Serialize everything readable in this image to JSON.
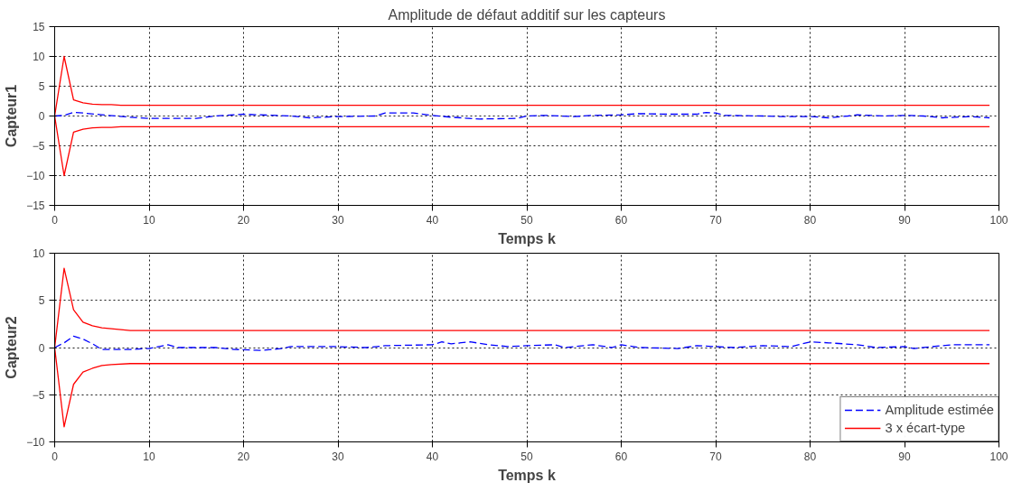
{
  "chart_data": [
    {
      "type": "line",
      "title": "Amplitude de défaut additif sur les capteurs",
      "xlabel": "Temps k",
      "ylabel": "Capteur1",
      "xlim": [
        0,
        100
      ],
      "xticks": [
        0,
        10,
        20,
        30,
        40,
        50,
        60,
        70,
        80,
        90,
        100
      ],
      "ylim": [
        -15,
        15
      ],
      "yticks": [
        -15,
        -10,
        -5,
        0,
        5,
        10,
        15
      ],
      "grid": true,
      "legend": false,
      "series": [
        {
          "color": "#0000ff",
          "line_style": "dashed",
          "x": [
            0,
            1,
            2,
            3,
            5,
            8,
            10,
            15,
            17,
            20,
            25,
            27,
            30,
            34,
            35,
            38,
            40,
            42,
            45,
            49,
            50,
            52,
            55,
            57,
            60,
            62,
            65,
            68,
            69,
            70,
            71,
            75,
            77,
            80,
            82,
            84,
            85,
            88,
            90,
            92,
            94,
            97,
            99
          ],
          "values": [
            0,
            0.1,
            0.6,
            0.5,
            0.2,
            -0.2,
            -0.4,
            -0.4,
            0,
            0.3,
            0,
            -0.3,
            -0.1,
            0,
            0.5,
            0.5,
            0.1,
            -0.2,
            -0.5,
            -0.4,
            0,
            0.1,
            -0.1,
            0.1,
            0.2,
            0.4,
            0.3,
            0.3,
            0.6,
            0.5,
            0.1,
            0,
            -0.1,
            -0.1,
            -0.3,
            0,
            0.2,
            0,
            0.1,
            0,
            -0.3,
            -0.1,
            -0.3
          ]
        },
        {
          "color": "#ff0000",
          "line_style": "solid",
          "x": [
            99,
            7,
            6,
            5,
            4,
            3,
            2,
            1,
            0,
            1,
            2,
            3,
            4,
            5,
            6,
            7,
            99
          ],
          "values": [
            1.8,
            1.8,
            1.9,
            1.9,
            2.0,
            2.2,
            2.7,
            10,
            0,
            -10,
            -2.7,
            -2.2,
            -2.0,
            -1.9,
            -1.9,
            -1.8,
            -1.8
          ]
        }
      ]
    },
    {
      "type": "line",
      "xlabel": "Temps k",
      "ylabel": "Capteur2",
      "xlim": [
        0,
        100
      ],
      "xticks": [
        0,
        10,
        20,
        30,
        40,
        50,
        60,
        70,
        80,
        90,
        100
      ],
      "ylim": [
        -10,
        10
      ],
      "yticks": [
        -10,
        -5,
        0,
        5,
        10
      ],
      "grid": true,
      "legend": "bottom right",
      "series": [
        {
          "name": "Amplitude estimée",
          "color": "#0000ff",
          "line_style": "dashed",
          "x": [
            0,
            1,
            2,
            3,
            4,
            5,
            8,
            10,
            12,
            13,
            17,
            19,
            22,
            24,
            25,
            30,
            33,
            35,
            40,
            41,
            42,
            44,
            46,
            48,
            50,
            53,
            54,
            57,
            59,
            60,
            62,
            66,
            68,
            72,
            75,
            78,
            80,
            82,
            85,
            87,
            90,
            91,
            95,
            97,
            99
          ],
          "values": [
            0,
            0.5,
            1.2,
            0.9,
            0.4,
            -0.2,
            -0.2,
            -0.1,
            0.3,
            0,
            0,
            -0.2,
            -0.3,
            -0.1,
            0.1,
            0.1,
            0,
            0.2,
            0.3,
            0.6,
            0.4,
            0.6,
            0.3,
            0.1,
            0.2,
            0.3,
            0,
            0.3,
            0,
            0.3,
            0,
            -0.1,
            0.2,
            0,
            0.2,
            0.1,
            0.6,
            0.5,
            0.3,
            0,
            0.1,
            -0.1,
            0.3,
            0.3,
            0.3
          ]
        },
        {
          "name": "3 x écart-type",
          "color": "#ff0000",
          "line_style": "solid",
          "x": [
            99,
            15,
            8,
            6,
            5,
            4,
            3,
            2,
            1,
            0,
            1,
            2,
            3,
            4,
            5,
            6,
            8,
            15,
            99
          ],
          "values": [
            1.8,
            1.8,
            1.8,
            2.0,
            2.1,
            2.3,
            2.7,
            4.0,
            8.4,
            0,
            -8.4,
            -3.9,
            -2.6,
            -2.2,
            -1.9,
            -1.8,
            -1.7,
            -1.7,
            -1.7
          ]
        }
      ]
    }
  ]
}
